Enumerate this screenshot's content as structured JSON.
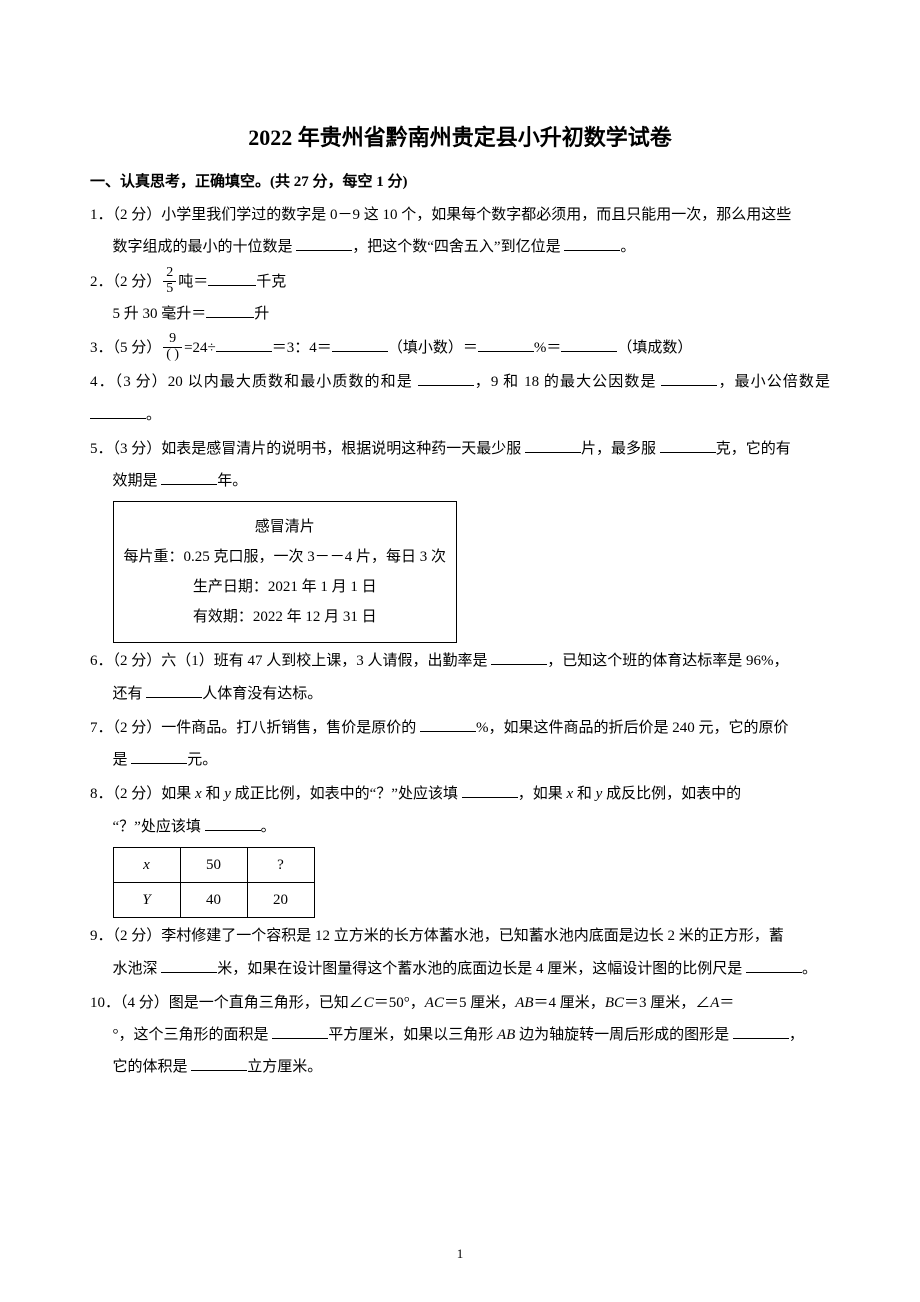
{
  "title": "2022 年贵州省黔南州贵定县小升初数学试卷",
  "section1": {
    "heading": "一、认真思考，正确填空。(共 27 分，每空 1 分)"
  },
  "q1": {
    "prefix": "1．（2 分）小学里我们学过的数字是 0－9 这 10 个，如果每个数字都必须用，而且只能用一次，那么用这些",
    "line2a": "数字组成的最小的十位数是 ",
    "line2b": "，把这个数“四舍五入”到亿位是 ",
    "line2c": "。"
  },
  "q2": {
    "prefix": "2．（2 分）",
    "frac_num": "2",
    "frac_den": "5",
    "after_frac": "吨＝",
    "unit1": "千克",
    "line2a": "5 升 30 毫升＝",
    "unit2": "升"
  },
  "q3": {
    "prefix": "3．（5 分）",
    "frac_num": "9",
    "frac_den": "( )",
    "seg1": "=24÷",
    "seg2": "＝3：4＝",
    "seg3": "（填小数）＝",
    "seg4": "%＝",
    "seg5": "（填成数）"
  },
  "q4": {
    "a": "4．（3 分）20 以内最大质数和最小质数的和是 ",
    "b": "，9 和 18 的最大公因数是 ",
    "c": "，最小公倍数是 ",
    "d": "。"
  },
  "q5": {
    "a": "5．（3 分）如表是感冒清片的说明书，根据说明这种药一天最少服 ",
    "b": "片，最多服 ",
    "c": "克，它的有",
    "d": "效期是 ",
    "e": "年。",
    "box_title": "感冒清片",
    "box_l1": "每片重：0.25 克口服，一次 3－－4 片，每日 3 次",
    "box_l2": "生产日期：2021 年 1 月 1 日",
    "box_l3": "有效期：2022 年 12 月 31 日"
  },
  "q6": {
    "a": "6．（2 分）六（1）班有 47 人到校上课，3 人请假，出勤率是 ",
    "b": "，已知这个班的体育达标率是 96%，",
    "c": "还有 ",
    "d": "人体育没有达标。"
  },
  "q7": {
    "a": "7．（2 分）一件商品。打八折销售，售价是原价的 ",
    "b": "%，如果这件商品的折后价是 240 元，它的原价",
    "c": "是 ",
    "d": "元。"
  },
  "q8": {
    "a": "8．（2 分）如果 ",
    "x": "x",
    "mid1": " 和 ",
    "y": "y",
    "mid2": " 成正比例，如表中的“？”处应该填 ",
    "b": "，如果 ",
    "mid3": " 成反比例，如表中的",
    "c": "“？”处应该填 ",
    "d": "。",
    "tbl": {
      "r1c1": "x",
      "r1c2": "50",
      "r1c3": "?",
      "r2c1": "Y",
      "r2c2": "40",
      "r2c3": "20"
    }
  },
  "q9": {
    "a": "9．（2 分）李村修建了一个容积是 12 立方米的长方体蓄水池，已知蓄水池内底面是边长 2 米的正方形，蓄",
    "b": "水池深 ",
    "c": "米，如果在设计图量得这个蓄水池的底面边长是 4 厘米，这幅设计图的比例尺是 ",
    "d": "。"
  },
  "q10": {
    "a": "10．（4 分）图是一个直角三角形，已知∠",
    "C": "C",
    "eq50": "＝50°，",
    "AC": "AC",
    "eq5": "＝5 厘米，",
    "AB": "AB",
    "eq4": "＝4 厘米，",
    "BC": "BC",
    "eq3": "＝3 厘米，∠",
    "A": "A",
    "eq": "＝",
    "b": "°，这个三角形的面积是 ",
    "c": "平方厘米，如果以三角形 ",
    "d": " 边为轴旋转一周后形成的图形是 ",
    "e": "，",
    "f": "它的体积是 ",
    "g": "立方厘米。"
  },
  "page_number": "1"
}
